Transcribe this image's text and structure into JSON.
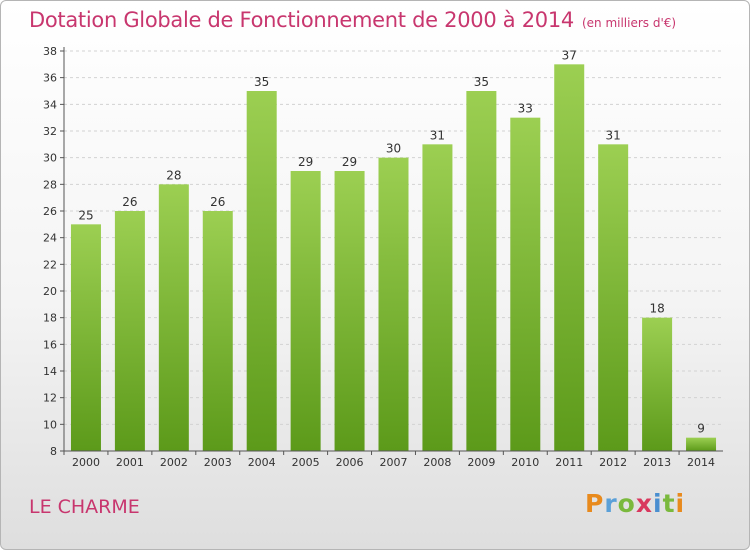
{
  "title": "Dotation Globale de Fonctionnement de 2000 à 2014",
  "unit_label": "(en milliers d'€)",
  "place_name": "LE CHARME",
  "logo": {
    "letters": [
      "P",
      "r",
      "o",
      "x",
      "i",
      "t",
      "i"
    ],
    "colors": [
      "#e88a1d",
      "#5aa0d8",
      "#7ab93d",
      "#d9385e",
      "#4a8fd0",
      "#7ab93d",
      "#e88a1d"
    ]
  },
  "colors": {
    "bar_top": "#9ccf52",
    "bar_bottom": "#5c9a1a",
    "title": "#c8366e"
  },
  "chart_data": {
    "type": "bar",
    "title": "Dotation Globale de Fonctionnement de 2000 à 2014",
    "subtitle": "(en milliers d'€)",
    "categories": [
      "2000",
      "2001",
      "2002",
      "2003",
      "2004",
      "2005",
      "2006",
      "2007",
      "2008",
      "2009",
      "2010",
      "2011",
      "2012",
      "2013",
      "2014"
    ],
    "values": [
      25,
      26,
      28,
      26,
      35,
      29,
      29,
      30,
      31,
      35,
      33,
      37,
      31,
      18,
      9
    ],
    "ylim": [
      8,
      38
    ],
    "yticks": [
      8,
      10,
      12,
      14,
      16,
      18,
      20,
      22,
      24,
      26,
      28,
      30,
      32,
      34,
      36,
      38
    ],
    "grid": true,
    "xlabel": "",
    "ylabel": ""
  }
}
